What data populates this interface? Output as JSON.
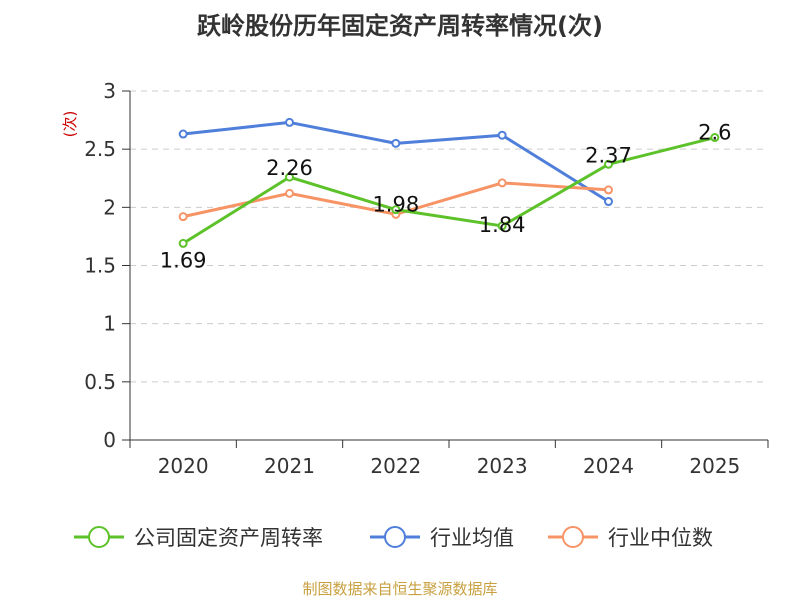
{
  "chart_data": {
    "type": "line",
    "title": "跃岭股份历年固定资产周转率情况(次)",
    "ylabel": "(次)",
    "xlabel": "",
    "ylim": [
      0,
      3
    ],
    "y_ticks": [
      "0",
      "0.5",
      "1",
      "1.5",
      "2",
      "2.5",
      "3"
    ],
    "categories": [
      "2020",
      "2021",
      "2022",
      "2023",
      "2024",
      "2025"
    ],
    "grid": true,
    "legend_position": "bottom",
    "series": [
      {
        "name": "公司固定资产周转率",
        "color": "#5dc22a",
        "values": [
          1.69,
          2.26,
          1.98,
          1.84,
          2.37,
          2.6
        ],
        "labels": [
          "1.69",
          "2.26",
          "1.98",
          "1.84",
          "2.37",
          "2.6"
        ]
      },
      {
        "name": "行业均值",
        "color": "#4f7fda",
        "values": [
          2.63,
          2.73,
          2.55,
          2.62,
          2.05,
          null
        ],
        "labels": []
      },
      {
        "name": "行业中位数",
        "color": "#f79466",
        "values": [
          1.92,
          2.12,
          1.94,
          2.21,
          2.15,
          null
        ],
        "labels": []
      }
    ]
  },
  "source": "制图数据来自恒生聚源数据库"
}
